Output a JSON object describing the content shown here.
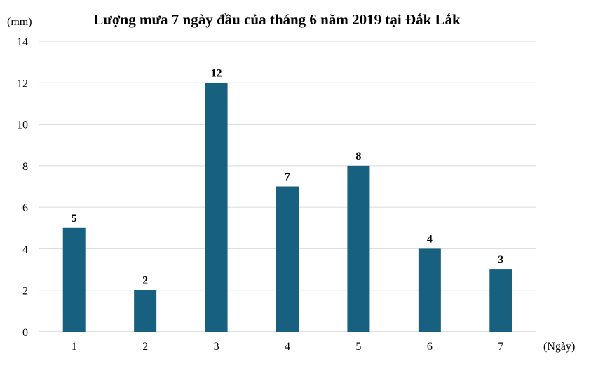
{
  "chart_data": {
    "type": "bar",
    "title": "Lượng mưa 7 ngày đầu của tháng 6 năm 2019 tại Đắk Lắk",
    "ylabel": "(mm)",
    "xlabel": "(Ngày)",
    "categories": [
      "1",
      "2",
      "3",
      "4",
      "5",
      "6",
      "7"
    ],
    "values": [
      5,
      2,
      12,
      7,
      8,
      4,
      3
    ],
    "ylim": [
      0,
      14
    ],
    "yticks": [
      0,
      2,
      4,
      6,
      8,
      10,
      12,
      14
    ],
    "grid": true,
    "legend": "none",
    "bar_color": "#17607f",
    "grid_color": "#d9d9d9",
    "axis_color": "#bfbfbf",
    "text_color": "#000000"
  }
}
